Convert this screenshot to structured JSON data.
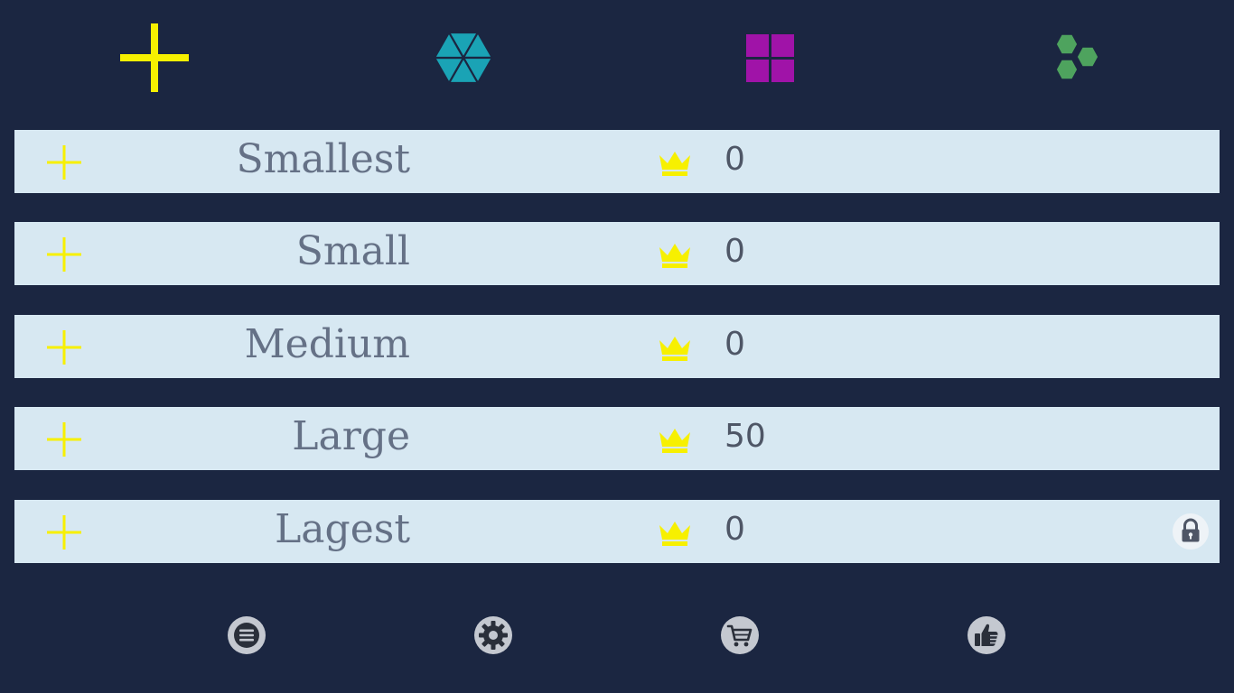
{
  "tabs": [
    {
      "name": "plus",
      "icon": "plus-icon",
      "color": "#f7f000",
      "selected": true
    },
    {
      "name": "triangle",
      "icon": "hexagon-triangles-icon",
      "color": "#1aa3b5",
      "selected": false
    },
    {
      "name": "square",
      "icon": "four-squares-icon",
      "color": "#a013a8",
      "selected": false
    },
    {
      "name": "hexagon",
      "icon": "hexagon-cluster-icon",
      "color": "#4ea35e",
      "selected": false
    }
  ],
  "levels": [
    {
      "label": "Smallest",
      "score": "0",
      "locked": false
    },
    {
      "label": "Small",
      "score": "0",
      "locked": false
    },
    {
      "label": "Medium",
      "score": "0",
      "locked": false
    },
    {
      "label": "Large",
      "score": "50",
      "locked": false
    },
    {
      "label": "Lagest",
      "score": "0",
      "locked": true
    }
  ],
  "colors": {
    "background": "#1b2641",
    "row": "#d7e8f2",
    "accent": "#f7f000",
    "label": "#657186",
    "score": "#4e5666",
    "icon_gray": "#c4c8d0"
  },
  "bottom_bar": [
    {
      "name": "menu",
      "icon": "menu-icon"
    },
    {
      "name": "settings",
      "icon": "gear-icon"
    },
    {
      "name": "shop",
      "icon": "cart-icon"
    },
    {
      "name": "like",
      "icon": "thumbs-up-icon"
    }
  ]
}
